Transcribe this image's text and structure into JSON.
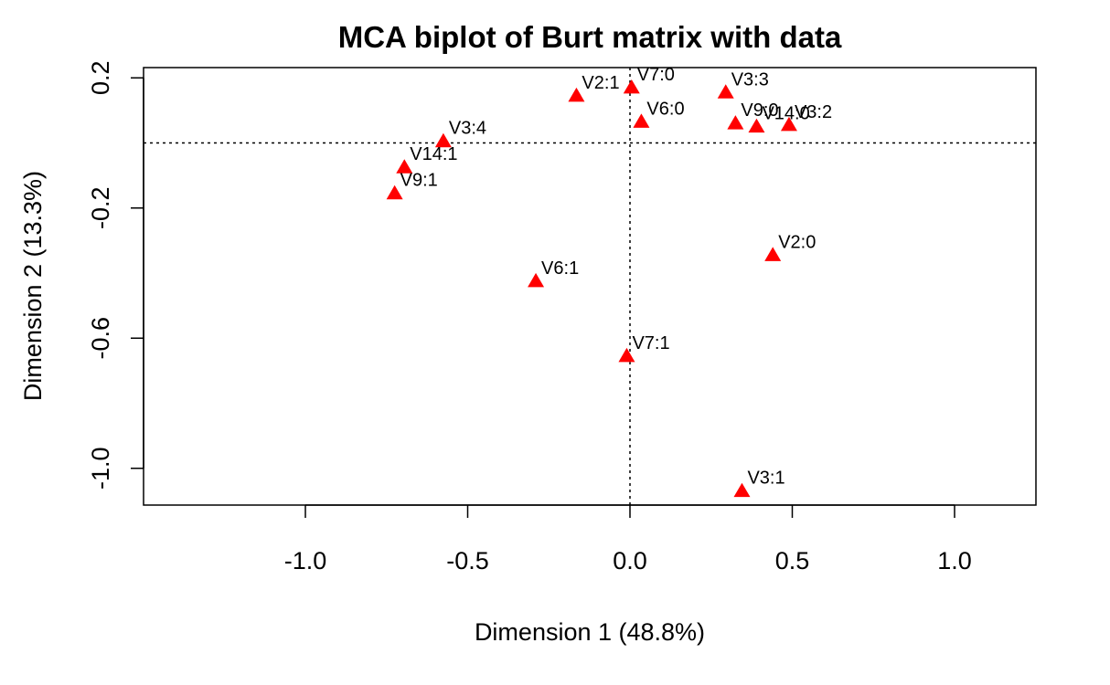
{
  "chart_data": {
    "type": "scatter",
    "title": "MCA biplot of Burt matrix with data",
    "xlabel": "Dimension 1 (48.8%)",
    "ylabel": "Dimension 2 (13.3%)",
    "xlim": [
      -1.5,
      1.25
    ],
    "ylim": [
      -1.12,
      0.2
    ],
    "x_ticks": [
      -1.0,
      -0.5,
      0.0,
      0.5,
      1.0
    ],
    "x_tick_labels": [
      "-1.0",
      "-0.5",
      "0.0",
      "0.5",
      "1.0"
    ],
    "y_ticks": [
      0.2,
      -0.2,
      -0.6,
      -1.0
    ],
    "y_tick_labels": [
      "0.2",
      "-0.2",
      "-0.6",
      "-1.0"
    ],
    "reference_lines": {
      "x": 0,
      "y": 0,
      "style": "dotted"
    },
    "marker": "triangle",
    "marker_color": "#ff0000",
    "grid": false,
    "points": [
      {
        "label": "V2:1",
        "x": -0.165,
        "y": 0.145
      },
      {
        "label": "V7:0",
        "x": 0.005,
        "y": 0.17
      },
      {
        "label": "V3:3",
        "x": 0.295,
        "y": 0.155
      },
      {
        "label": "V6:0",
        "x": 0.035,
        "y": 0.065
      },
      {
        "label": "V9:0",
        "x": 0.325,
        "y": 0.06
      },
      {
        "label": "V14:0",
        "x": 0.39,
        "y": 0.05
      },
      {
        "label": "V3:2",
        "x": 0.49,
        "y": 0.055
      },
      {
        "label": "V3:4",
        "x": -0.575,
        "y": 0.005
      },
      {
        "label": "V14:1",
        "x": -0.695,
        "y": -0.075
      },
      {
        "label": "V9:1",
        "x": -0.725,
        "y": -0.155
      },
      {
        "label": "V2:0",
        "x": 0.44,
        "y": -0.345
      },
      {
        "label": "V6:1",
        "x": -0.29,
        "y": -0.425
      },
      {
        "label": "V7:1",
        "x": -0.01,
        "y": -0.655
      },
      {
        "label": "V3:1",
        "x": 0.345,
        "y": -1.07
      }
    ]
  }
}
